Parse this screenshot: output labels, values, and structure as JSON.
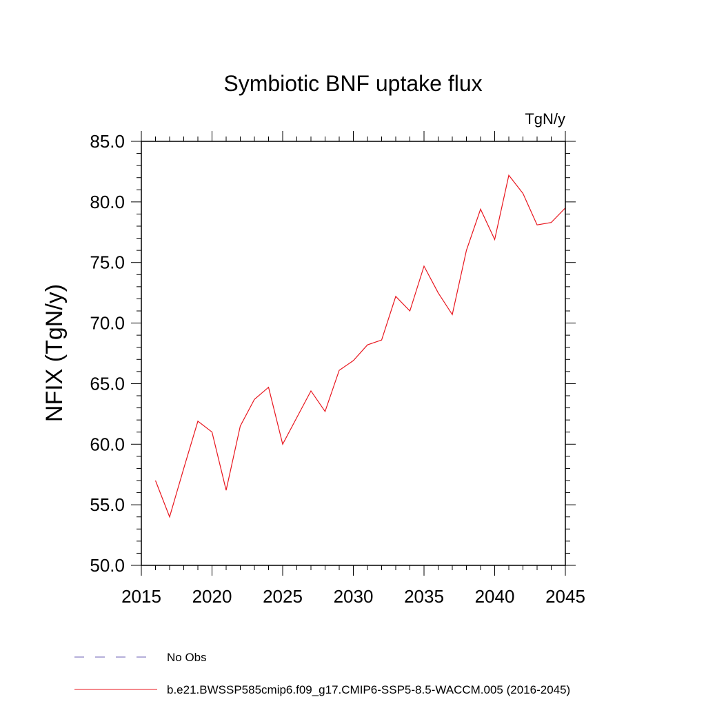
{
  "chart_data": {
    "type": "line",
    "title": "Symbiotic BNF uptake flux",
    "units_label": "TgN/y",
    "xlabel": "",
    "ylabel": "NFIX  (TgN/y)",
    "xlim": [
      2015,
      2045
    ],
    "ylim": [
      50.0,
      85.0
    ],
    "x_ticks": [
      2015,
      2020,
      2025,
      2030,
      2035,
      2040,
      2045
    ],
    "x_tick_labels": [
      "2015",
      "2020",
      "2025",
      "2030",
      "2035",
      "2040",
      "2045"
    ],
    "y_ticks": [
      50,
      55,
      60,
      65,
      70,
      75,
      80,
      85
    ],
    "y_tick_labels": [
      "50.0",
      "55.0",
      "60.0",
      "65.0",
      "70.0",
      "75.0",
      "80.0",
      "85.0"
    ],
    "grid": false,
    "legend_placement": "bottom",
    "series": [
      {
        "name": "b.e21.BWSSP585cmip6.f09_g17.CMIP6-SSP5-8.5-WACCM.005 (2016-2045)",
        "color": "#e8161e",
        "style": "solid",
        "x": [
          2016,
          2017,
          2018,
          2019,
          2020,
          2021,
          2022,
          2023,
          2024,
          2025,
          2026,
          2027,
          2028,
          2029,
          2030,
          2031,
          2032,
          2033,
          2034,
          2035,
          2036,
          2037,
          2038,
          2039,
          2040,
          2041,
          2042,
          2043,
          2044,
          2045
        ],
        "values": [
          57.0,
          54.0,
          58.0,
          61.9,
          61.0,
          56.2,
          61.5,
          63.7,
          64.7,
          60.0,
          62.2,
          64.4,
          62.7,
          66.1,
          66.9,
          68.2,
          68.6,
          72.2,
          71.0,
          74.7,
          72.5,
          70.7,
          76.0,
          79.4,
          76.9,
          82.2,
          80.7,
          78.1,
          78.3,
          79.5
        ]
      },
      {
        "name": "No Obs",
        "color": "#6b5fb5",
        "style": "dashed",
        "x": [],
        "values": []
      }
    ]
  }
}
